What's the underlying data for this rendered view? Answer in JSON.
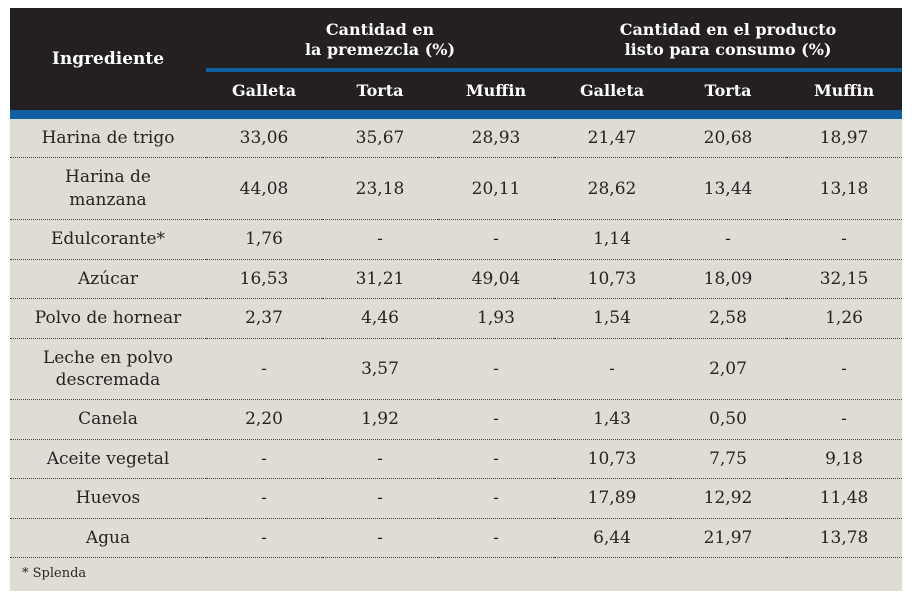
{
  "colors": {
    "header_bg": "#242021",
    "accent_blue": "#0f5fa0",
    "row_bg": "#dedcd5",
    "body_text": "#272320"
  },
  "table": {
    "ingredient_header": "Ingrediente",
    "group_headers": {
      "premix": {
        "line1": "Cantidad en",
        "line2": "la premezcla (%)"
      },
      "ready": {
        "line1": "Cantidad en el producto",
        "line2": "listo para consumo (%)"
      }
    },
    "sub_headers": [
      "Galleta",
      "Torta",
      "Muffin",
      "Galleta",
      "Torta",
      "Muffin"
    ],
    "rows": [
      {
        "ingredient": "Harina de trigo",
        "values": [
          "33,06",
          "35,67",
          "28,93",
          "21,47",
          "20,68",
          "18,97"
        ]
      },
      {
        "ingredient": "Harina de\nmanzana",
        "values": [
          "44,08",
          "23,18",
          "20,11",
          "28,62",
          "13,44",
          "13,18"
        ]
      },
      {
        "ingredient": "Edulcorante*",
        "values": [
          "1,76",
          "-",
          "-",
          "1,14",
          "-",
          "-"
        ]
      },
      {
        "ingredient": "Azúcar",
        "values": [
          "16,53",
          "31,21",
          "49,04",
          "10,73",
          "18,09",
          "32,15"
        ]
      },
      {
        "ingredient": "Polvo de hornear",
        "values": [
          "2,37",
          "4,46",
          "1,93",
          "1,54",
          "2,58",
          "1,26"
        ]
      },
      {
        "ingredient": "Leche en polvo\ndescremada",
        "values": [
          "-",
          "3,57",
          "-",
          "-",
          "2,07",
          "-"
        ]
      },
      {
        "ingredient": "Canela",
        "values": [
          "2,20",
          "1,92",
          "-",
          "1,43",
          "0,50",
          "-"
        ]
      },
      {
        "ingredient": "Aceite vegetal",
        "values": [
          "-",
          "-",
          "-",
          "10,73",
          "7,75",
          "9,18"
        ]
      },
      {
        "ingredient": "Huevos",
        "values": [
          "-",
          "-",
          "-",
          "17,89",
          "12,92",
          "11,48"
        ]
      },
      {
        "ingredient": "Agua",
        "values": [
          "-",
          "-",
          "-",
          "6,44",
          "21,97",
          "13,78"
        ]
      }
    ],
    "footnote": "* Splenda"
  },
  "chart_data": {
    "type": "table",
    "title": "",
    "column_groups": [
      "Cantidad en la premezcla (%)",
      "Cantidad en el producto listo para consumo (%)"
    ],
    "columns": [
      "Ingrediente",
      "Galleta",
      "Torta",
      "Muffin",
      "Galleta",
      "Torta",
      "Muffin"
    ],
    "rows": [
      [
        "Harina de trigo",
        "33,06",
        "35,67",
        "28,93",
        "21,47",
        "20,68",
        "18,97"
      ],
      [
        "Harina de manzana",
        "44,08",
        "23,18",
        "20,11",
        "28,62",
        "13,44",
        "13,18"
      ],
      [
        "Edulcorante*",
        "1,76",
        "-",
        "-",
        "1,14",
        "-",
        "-"
      ],
      [
        "Azúcar",
        "16,53",
        "31,21",
        "49,04",
        "10,73",
        "18,09",
        "32,15"
      ],
      [
        "Polvo de hornear",
        "2,37",
        "4,46",
        "1,93",
        "1,54",
        "2,58",
        "1,26"
      ],
      [
        "Leche en polvo descremada",
        "-",
        "3,57",
        "-",
        "-",
        "2,07",
        "-"
      ],
      [
        "Canela",
        "2,20",
        "1,92",
        "-",
        "1,43",
        "0,50",
        "-"
      ],
      [
        "Aceite vegetal",
        "-",
        "-",
        "-",
        "10,73",
        "7,75",
        "9,18"
      ],
      [
        "Huevos",
        "-",
        "-",
        "-",
        "17,89",
        "12,92",
        "11,48"
      ],
      [
        "Agua",
        "-",
        "-",
        "-",
        "6,44",
        "21,97",
        "13,78"
      ]
    ],
    "footnote": "* Splenda"
  }
}
